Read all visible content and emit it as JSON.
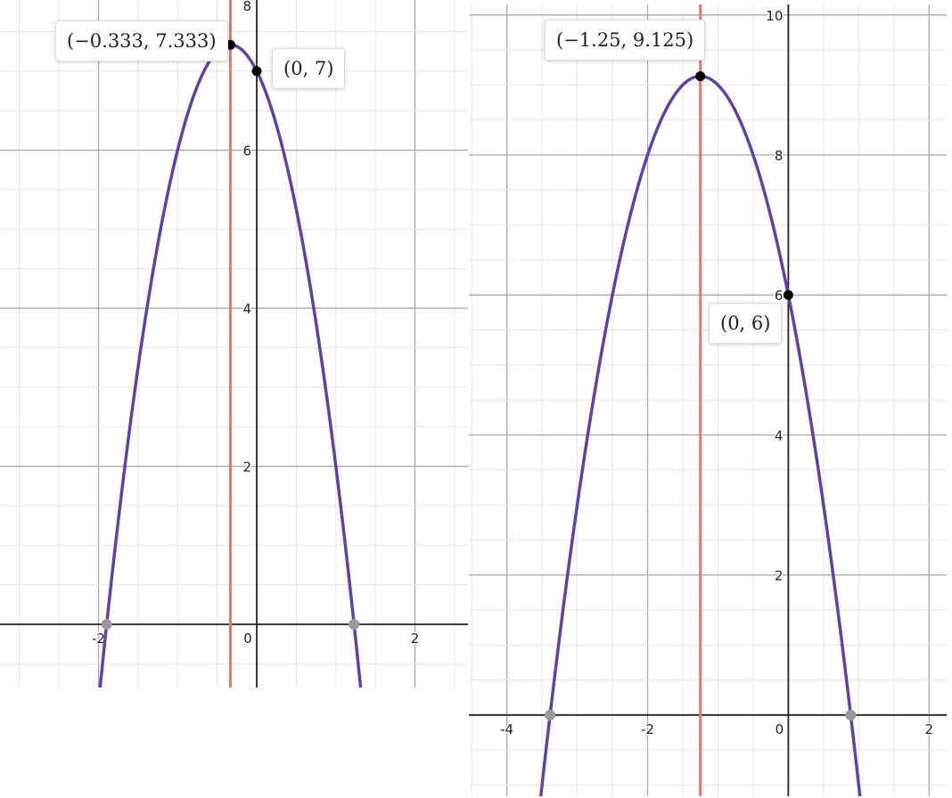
{
  "chart_data": [
    {
      "type": "line",
      "xlim": [
        -3.245,
        2.67
      ],
      "ylim": [
        -0.8,
        7.9
      ],
      "grid": true,
      "x_ticks": [
        "-2",
        "0",
        "2"
      ],
      "y_ticks": [
        "2",
        "4",
        "6",
        "8"
      ],
      "series": [
        {
          "kind": "parabola",
          "coefficients": {
            "a": -3,
            "b": -2,
            "c": 7
          },
          "color": "#6042a6"
        },
        {
          "kind": "vertical-line",
          "x": -0.333,
          "color": "#e07a73"
        }
      ],
      "points": [
        {
          "x": -0.333,
          "y": 7.333,
          "label": "(−0.333, 7.333)",
          "color": "#000000"
        },
        {
          "x": 0,
          "y": 7,
          "label": "(0, 7)",
          "color": "#000000"
        },
        {
          "x": -1.897,
          "y": 0,
          "color": "#999999"
        },
        {
          "x": 1.23,
          "y": 0,
          "color": "#999999"
        }
      ]
    },
    {
      "type": "line",
      "xlim": [
        -4.54,
        2.25
      ],
      "ylim": [
        -1.16,
        10.15
      ],
      "grid": true,
      "x_ticks": [
        "-4",
        "-2",
        "0",
        "2"
      ],
      "y_ticks": [
        "2",
        "4",
        "6",
        "8",
        "10"
      ],
      "series": [
        {
          "kind": "parabola",
          "coefficients": {
            "a": -2,
            "b": -5,
            "c": 6
          },
          "color": "#6042a6"
        },
        {
          "kind": "vertical-line",
          "x": -1.25,
          "color": "#e07a73"
        }
      ],
      "points": [
        {
          "x": -1.25,
          "y": 9.125,
          "label": "(−1.25, 9.125)",
          "color": "#000000"
        },
        {
          "x": 0,
          "y": 6,
          "label": "(0, 6)",
          "color": "#000000"
        },
        {
          "x": -3.386,
          "y": 0,
          "color": "#999999"
        },
        {
          "x": 0.886,
          "y": 0,
          "color": "#999999"
        }
      ]
    }
  ]
}
